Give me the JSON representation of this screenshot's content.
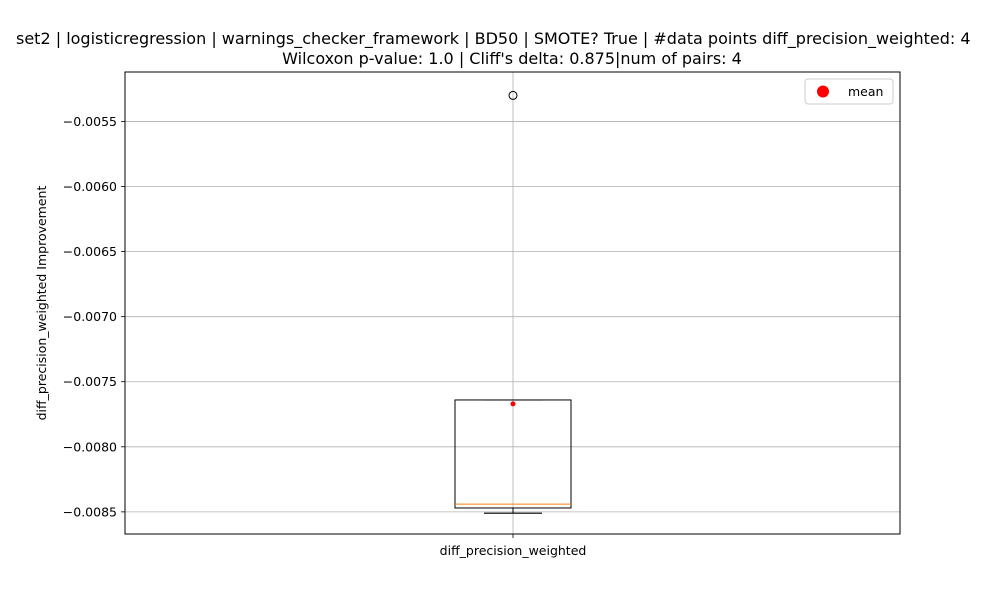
{
  "chart_data": {
    "type": "box",
    "title_line1": "set2 | logisticregression | warnings_checker_framework | BD50 | SMOTE? True | #data points diff_precision_weighted: 4",
    "title_line2": "Wilcoxon p-value: 1.0 | Cliff's delta: 0.875|num of pairs: 4",
    "xlabel": "",
    "ylabel": "diff_precision_weighted Improvement",
    "categories": [
      "diff_precision_weighted"
    ],
    "ylim": [
      -0.00867,
      -0.00512
    ],
    "yticks": [
      -0.0055,
      -0.006,
      -0.0065,
      -0.007,
      -0.0075,
      -0.008,
      -0.0085
    ],
    "ytick_labels": [
      "−0.0055",
      "−0.0060",
      "−0.0065",
      "−0.0070",
      "−0.0075",
      "−0.0080",
      "−0.0085"
    ],
    "box": {
      "whisker_low": -0.00851,
      "q1": -0.00847,
      "median": -0.00844,
      "q3": -0.00764,
      "whisker_high": -0.00764,
      "mean": -0.00767,
      "outliers": [
        -0.0053
      ]
    },
    "grid": true,
    "legend": {
      "position": "top-right",
      "entries": [
        "mean"
      ]
    },
    "colors": {
      "box": "#000000",
      "median": "#ff7f0e",
      "mean": "#ff0000",
      "grid": "#b0b0b0"
    }
  }
}
